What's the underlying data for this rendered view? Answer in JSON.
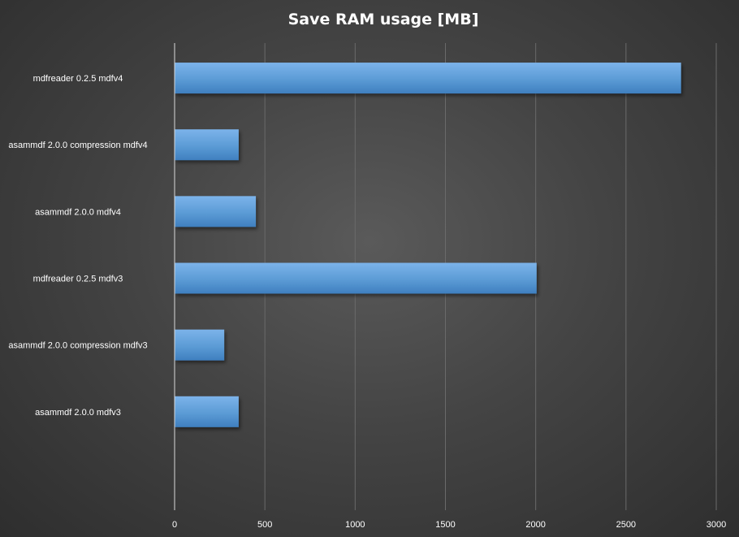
{
  "chart_data": {
    "type": "bar",
    "orientation": "horizontal",
    "title": "Save RAM usage [MB]",
    "xlabel": "",
    "ylabel": "",
    "categories": [
      "mdfreader 0.2.5 mdfv4",
      "asammdf 2.0.0 compression mdfv4",
      "asammdf 2.0.0 mdfv4",
      "mdfreader 0.2.5 mdfv3",
      "asammdf 2.0.0 compression mdfv3",
      "asammdf 2.0.0 mdfv3"
    ],
    "values": [
      2805,
      355,
      450,
      2005,
      275,
      355
    ],
    "xlim": [
      0,
      3000
    ],
    "xticks": [
      0,
      500,
      1000,
      1500,
      2000,
      2500,
      3000
    ],
    "grid": true,
    "legend": "none",
    "bar_color": "#5b9bd5"
  }
}
